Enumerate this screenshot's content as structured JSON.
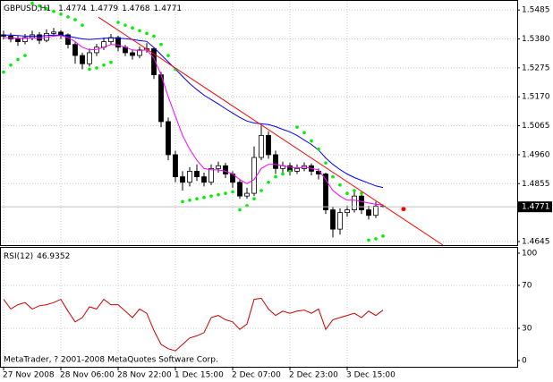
{
  "chart_data": [
    {
      "type": "candlestick",
      "title": "GBPUSD,H1",
      "header_values": [
        1.4774,
        1.4779,
        1.4768,
        1.4771
      ],
      "categories": [
        "27 Nov 2008",
        null,
        null,
        null,
        null,
        null,
        null,
        null,
        "28 Nov 06:00",
        null,
        null,
        null,
        null,
        null,
        null,
        null,
        "28 Nov 22:00",
        null,
        null,
        null,
        null,
        null,
        null,
        null,
        "1 Dec 15:00",
        null,
        null,
        null,
        null,
        null,
        null,
        null,
        "2 Dec 07:00",
        null,
        null,
        null,
        null,
        null,
        null,
        null,
        "2 Dec 23:00",
        null,
        null,
        null,
        null,
        null,
        null,
        null,
        "3 Dec 15:00",
        null,
        null,
        null,
        null,
        null
      ],
      "open": [
        1.5395,
        1.539,
        1.538,
        1.537,
        1.5385,
        1.5395,
        1.5375,
        1.54,
        1.5405,
        1.5395,
        1.536,
        1.532,
        1.529,
        1.533,
        1.535,
        1.537,
        1.5385,
        1.535,
        1.533,
        1.532,
        1.534,
        1.5345,
        1.525,
        1.508,
        1.496,
        1.488,
        1.486,
        1.49,
        1.488,
        1.486,
        1.491,
        1.492,
        1.489,
        1.486,
        1.481,
        1.482,
        1.495,
        1.503,
        1.496,
        1.491,
        1.492,
        1.49,
        1.491,
        1.492,
        1.49,
        1.489,
        1.476,
        1.469,
        1.475,
        1.476,
        1.481,
        1.476,
        1.474,
        1.4774
      ],
      "high": [
        1.541,
        1.5402,
        1.5392,
        1.5398,
        1.541,
        1.5405,
        1.5415,
        1.542,
        1.5412,
        1.54,
        1.5368,
        1.533,
        1.5345,
        1.5362,
        1.5385,
        1.5398,
        1.5392,
        1.5358,
        1.534,
        1.5352,
        1.5365,
        1.535,
        1.526,
        1.5095,
        1.4975,
        1.49,
        1.4915,
        1.4925,
        1.4895,
        1.4925,
        1.4935,
        1.493,
        1.49,
        1.487,
        1.484,
        1.499,
        1.5065,
        1.5045,
        1.4975,
        1.4935,
        1.493,
        1.4925,
        1.4932,
        1.4928,
        1.491,
        1.4895,
        1.477,
        1.4765,
        1.4775,
        1.483,
        1.4815,
        1.4775,
        1.479,
        1.4779
      ],
      "low": [
        1.5378,
        1.5368,
        1.5355,
        1.536,
        1.5375,
        1.5362,
        1.5368,
        1.539,
        1.538,
        1.5345,
        1.529,
        1.527,
        1.528,
        1.5318,
        1.534,
        1.536,
        1.5335,
        1.5318,
        1.5305,
        1.531,
        1.533,
        1.5235,
        1.506,
        1.494,
        1.486,
        1.483,
        1.4845,
        1.4865,
        1.4845,
        1.485,
        1.4895,
        1.4875,
        1.484,
        1.48,
        1.48,
        1.481,
        1.494,
        1.4945,
        1.489,
        1.4895,
        1.4885,
        1.489,
        1.49,
        1.4885,
        1.487,
        1.4745,
        1.466,
        1.467,
        1.4735,
        1.475,
        1.4745,
        1.4725,
        1.473,
        1.4768
      ],
      "close": [
        1.539,
        1.538,
        1.537,
        1.5385,
        1.5395,
        1.5375,
        1.54,
        1.5405,
        1.5395,
        1.536,
        1.532,
        1.529,
        1.533,
        1.535,
        1.537,
        1.5385,
        1.535,
        1.533,
        1.532,
        1.534,
        1.5345,
        1.525,
        1.508,
        1.496,
        1.488,
        1.486,
        1.49,
        1.488,
        1.486,
        1.491,
        1.492,
        1.489,
        1.486,
        1.481,
        1.482,
        1.495,
        1.503,
        1.496,
        1.491,
        1.492,
        1.49,
        1.491,
        1.492,
        1.49,
        1.489,
        1.476,
        1.469,
        1.475,
        1.476,
        1.481,
        1.476,
        1.474,
        1.4774,
        1.4771
      ],
      "up_color": "#ffffff",
      "down_color": "#000000",
      "lines": [
        {
          "color": "#0000ff",
          "values": [
            1.5394,
            1.5394,
            1.5392,
            1.539,
            1.539,
            1.539,
            1.5392,
            1.5394,
            1.5394,
            1.539,
            1.5385,
            1.538,
            1.5378,
            1.538,
            1.5382,
            1.5384,
            1.5383,
            1.5381,
            1.5378,
            1.5374,
            1.5371,
            1.5349,
            1.5323,
            1.5297,
            1.5271,
            1.5244,
            1.5218,
            1.5196,
            1.5176,
            1.516,
            1.5144,
            1.5127,
            1.5111,
            1.5095,
            1.5082,
            1.5075,
            1.5072,
            1.5069,
            1.5062,
            1.5052,
            1.5043,
            1.503,
            1.5013,
            1.4997,
            1.4977,
            1.4948,
            1.4925,
            1.4906,
            1.489,
            1.4877,
            1.4867,
            1.4857,
            1.4847,
            1.4841
          ]
        },
        {
          "color": "#ff00ff",
          "values": [
            1.5385,
            1.5384,
            1.5382,
            1.5382,
            1.5384,
            1.5383,
            1.5386,
            1.539,
            1.5392,
            1.5385,
            1.537,
            1.535,
            1.534,
            1.5342,
            1.535,
            1.536,
            1.5358,
            1.535,
            1.534,
            1.5338,
            1.534,
            1.531,
            1.525,
            1.517,
            1.51,
            1.503,
            1.498,
            1.494,
            1.491,
            1.4905,
            1.4905,
            1.49,
            1.489,
            1.487,
            1.4855,
            1.487,
            1.491,
            1.4925,
            1.4925,
            1.492,
            1.4915,
            1.4912,
            1.4915,
            1.491,
            1.4905,
            1.487,
            1.483,
            1.481,
            1.4795,
            1.4795,
            1.479,
            1.4785,
            1.478,
            1.4778
          ]
        }
      ],
      "sar": {
        "color": "#00ee00",
        "values": [
          1.526,
          1.5285,
          1.5305,
          1.532,
          1.551,
          1.55,
          1.549,
          1.548,
          1.547,
          1.546,
          1.545,
          1.543,
          1.527,
          1.5275,
          1.5285,
          1.5295,
          1.544,
          1.543,
          1.542,
          1.541,
          1.54,
          1.539,
          1.536,
          1.532,
          1.527,
          1.479,
          1.4795,
          1.48,
          1.4805,
          1.481,
          1.4815,
          1.482,
          1.4825,
          1.476,
          1.4775,
          1.48,
          1.483,
          1.486,
          1.488,
          1.489,
          1.49,
          1.506,
          1.504,
          1.501,
          1.498,
          1.493,
          1.488,
          1.485,
          1.482,
          1.483,
          1.482,
          1.465,
          1.4655,
          1.4665
        ]
      },
      "trendline": {
        "color": "#ff0000",
        "x": [
          13.25,
          61.375
        ],
        "y": [
          1.5459,
          1.4632
        ]
      },
      "marker": {
        "color": "#ff0000",
        "x": 55.875,
        "y": 1.4763
      },
      "last_price": 1.4771,
      "xlim": [
        -0.5,
        71.75
      ],
      "ylim": [
        1.4632,
        1.5518
      ],
      "yticks": [
        1.5485,
        {
          "value": 1.538,
          "label": "1.5380"
        },
        1.5275,
        {
          "value": 1.517,
          "label": "1.5170"
        },
        1.5065,
        {
          "value": 1.496,
          "label": "1.4960"
        },
        1.4855,
        1.4645
      ],
      "grid": true
    },
    {
      "type": "line",
      "title": "RSI(12)",
      "current": 46.9352,
      "color": "#cc0000",
      "values": [
        57,
        48,
        52,
        54,
        48,
        51,
        52,
        54,
        57,
        46,
        36,
        40,
        50,
        48,
        57,
        52,
        52,
        46,
        40,
        48,
        44,
        28,
        15,
        11,
        9,
        15,
        21,
        23,
        26,
        40,
        42,
        38,
        36,
        29,
        34,
        57,
        58,
        48,
        42,
        46,
        44,
        46,
        47,
        44,
        48,
        29,
        38,
        40,
        42,
        44,
        40,
        46,
        42,
        46.9352
      ],
      "ylim": [
        -5.83,
        105
      ],
      "yticks": [
        100,
        70,
        30,
        0
      ],
      "levels": [
        70,
        30
      ],
      "footer": "MetaTrader, ? 2001-2008 MetaQuotes Software Corp."
    }
  ]
}
